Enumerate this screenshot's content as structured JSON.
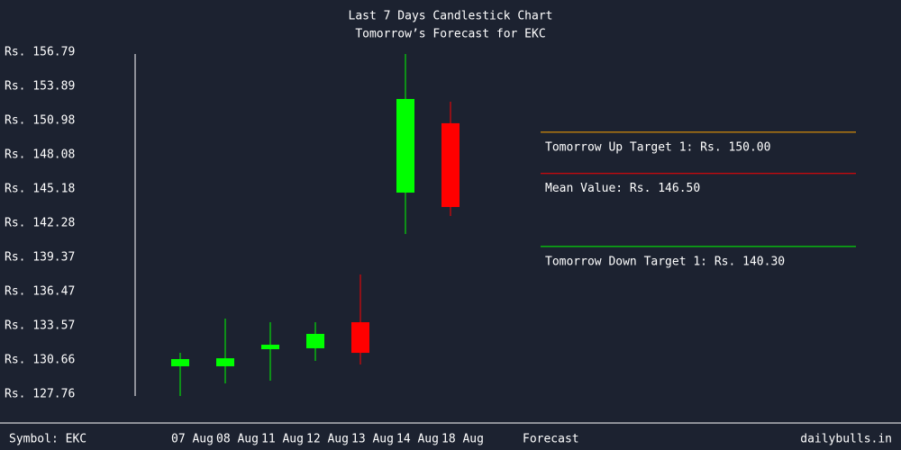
{
  "chart_data": {
    "type": "candlestick",
    "title": "Last 7 Days Candlestick Chart",
    "subtitle": "Tomorrow’s Forecast for EKC",
    "categories": [
      "07 Aug",
      "08 Aug",
      "11 Aug",
      "12 Aug",
      "13 Aug",
      "14 Aug",
      "18 Aug"
    ],
    "open": [
      130.13,
      130.13,
      131.58,
      131.66,
      133.87,
      144.87,
      150.76
    ],
    "high": [
      131.27,
      134.18,
      133.87,
      133.87,
      137.92,
      156.64,
      152.59
    ],
    "low": [
      127.61,
      128.68,
      128.91,
      130.59,
      130.28,
      141.36,
      142.89
    ],
    "close": [
      130.74,
      130.81,
      131.96,
      132.88,
      131.27,
      152.82,
      143.65
    ],
    "up_color": "#00ff00",
    "down_color": "#ff0000",
    "ylim": [
      127.76,
      156.79
    ],
    "yticks": [
      {
        "value": 156.79,
        "label": "Rs. 156.79"
      },
      {
        "value": 153.89,
        "label": "Rs. 153.89"
      },
      {
        "value": 150.98,
        "label": "Rs. 150.98"
      },
      {
        "value": 148.08,
        "label": "Rs. 148.08"
      },
      {
        "value": 145.18,
        "label": "Rs. 145.18"
      },
      {
        "value": 142.28,
        "label": "Rs. 142.28"
      },
      {
        "value": 139.37,
        "label": "Rs. 139.37"
      },
      {
        "value": 136.47,
        "label": "Rs. 136.47"
      },
      {
        "value": 133.57,
        "label": "Rs. 133.57"
      },
      {
        "value": 130.66,
        "label": "Rs. 130.66"
      },
      {
        "value": 127.76,
        "label": "Rs. 127.76"
      }
    ],
    "forecast_label": "Forecast",
    "targets": [
      {
        "label": "Tomorrow Up Target 1: Rs. 150.00",
        "value": 150.0,
        "color": "#ffa500"
      },
      {
        "label": "Mean Value: Rs. 146.50",
        "value": 146.5,
        "color": "#ff0000"
      },
      {
        "label": "Tomorrow Down Target 1: Rs. 140.30",
        "value": 140.3,
        "color": "#00ff00"
      }
    ],
    "symbol": "Symbol: EKC",
    "source": "dailybulls.in"
  }
}
